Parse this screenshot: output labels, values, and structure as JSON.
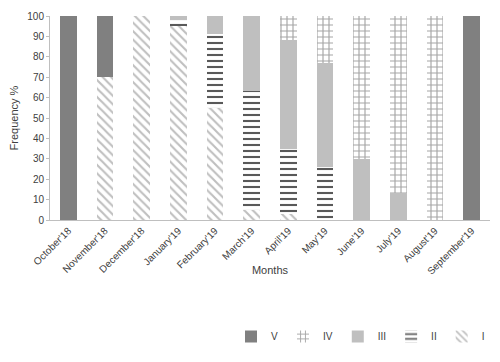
{
  "chart_data": {
    "type": "bar",
    "stacked": true,
    "x_label": "Months",
    "y_label": "Frequency %",
    "categories": [
      "October'18",
      "November'18",
      "December'18",
      "January'19",
      "February'19",
      "March'19",
      "April'19",
      "May'19",
      "June'19",
      "July'19",
      "August'19",
      "September'19"
    ],
    "series": [
      {
        "name": "I",
        "color": "#bfbfbf",
        "marker": "backslash",
        "values": [
          0,
          70,
          100,
          95,
          55,
          5,
          3,
          0,
          0,
          0,
          0,
          0
        ]
      },
      {
        "name": "II",
        "color": "#595959",
        "marker": "horizontal",
        "values": [
          0,
          0,
          0,
          3,
          36,
          58,
          32,
          26,
          0,
          0,
          0,
          0
        ]
      },
      {
        "name": "III",
        "color": "#bfbfbf",
        "marker": "solid",
        "values": [
          0,
          0,
          0,
          2,
          9,
          37,
          53,
          51,
          30,
          13,
          0,
          0
        ]
      },
      {
        "name": "IV",
        "color": "#a6a6a6",
        "marker": "grid",
        "values": [
          0,
          0,
          0,
          0,
          0,
          0,
          12,
          23,
          70,
          87,
          100,
          0
        ]
      },
      {
        "name": "V",
        "color": "#808080",
        "marker": "solid",
        "values": [
          100,
          30,
          0,
          0,
          0,
          0,
          0,
          0,
          0,
          0,
          0,
          100
        ]
      }
    ],
    "ylim": [
      0,
      100
    ],
    "yticks": [
      0,
      10,
      20,
      30,
      40,
      50,
      60,
      70,
      80,
      90,
      100
    ],
    "grid": false,
    "legend": "bottom right"
  }
}
